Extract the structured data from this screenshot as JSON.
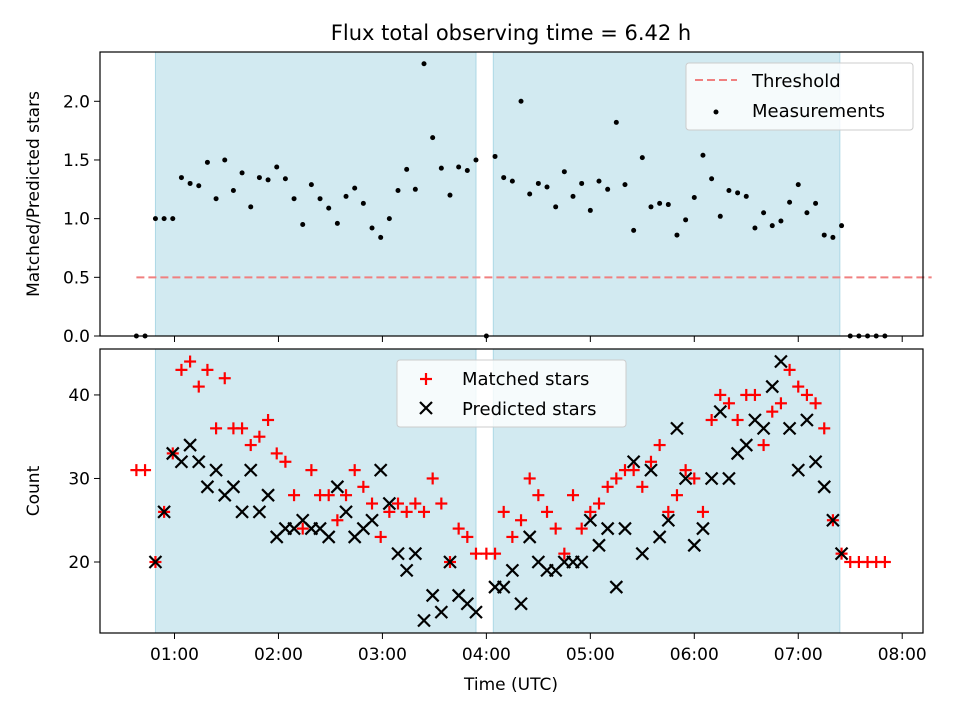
{
  "title": "Flux total observing time = 6.42 h",
  "colors": {
    "shade": "#add8e6",
    "threshold": "#f08080",
    "measurements": "#000000",
    "matched": "#ff0000",
    "predicted": "#000000"
  },
  "chart_data": [
    {
      "type": "scatter",
      "panel": "top",
      "title": "Flux total observing time = 6.42 h",
      "xlabel": "",
      "ylabel": "Matched/Predicted stars",
      "xlim": [
        "00:17",
        "08:12"
      ],
      "ylim": [
        0,
        2.42
      ],
      "yticks": [
        "0.0",
        "0.5",
        "1.0",
        "1.5",
        "2.0"
      ],
      "grid": false,
      "legend_position": "top-right",
      "shaded_intervals": [
        [
          "00:49",
          "03:54"
        ],
        [
          "04:04",
          "07:24"
        ]
      ],
      "threshold": {
        "name": "Threshold",
        "y": 0.5,
        "x_range": [
          "00:38",
          "08:17"
        ]
      },
      "series": [
        {
          "name": "Measurements",
          "marker": "dot",
          "x": [
            "00:38",
            "00:43",
            "00:49",
            "00:54",
            "00:59",
            "01:04",
            "01:09",
            "01:14",
            "01:19",
            "01:24",
            "01:29",
            "01:34",
            "01:39",
            "01:44",
            "01:49",
            "01:54",
            "01:59",
            "02:04",
            "02:09",
            "02:14",
            "02:19",
            "02:24",
            "02:29",
            "02:34",
            "02:39",
            "02:44",
            "02:49",
            "02:54",
            "02:59",
            "03:04",
            "03:09",
            "03:14",
            "03:19",
            "03:24",
            "03:29",
            "03:34",
            "03:39",
            "03:44",
            "03:49",
            "03:54",
            "04:00",
            "04:05",
            "04:10",
            "04:15",
            "04:20",
            "04:25",
            "04:30",
            "04:35",
            "04:40",
            "04:45",
            "04:50",
            "04:55",
            "05:00",
            "05:05",
            "05:10",
            "05:15",
            "05:20",
            "05:25",
            "05:30",
            "05:35",
            "05:40",
            "05:45",
            "05:50",
            "05:55",
            "06:00",
            "06:05",
            "06:10",
            "06:15",
            "06:20",
            "06:25",
            "06:30",
            "06:35",
            "06:40",
            "06:45",
            "06:50",
            "06:55",
            "07:00",
            "07:05",
            "07:10",
            "07:15",
            "07:20",
            "07:25",
            "07:30",
            "07:35",
            "07:40",
            "07:45",
            "07:50"
          ],
          "y": [
            0,
            0,
            1.0,
            1.0,
            1.0,
            1.35,
            1.3,
            1.28,
            1.48,
            1.17,
            1.5,
            1.24,
            1.39,
            1.1,
            1.35,
            1.33,
            1.44,
            1.34,
            1.17,
            0.95,
            1.29,
            1.17,
            1.09,
            0.96,
            1.19,
            1.26,
            1.13,
            0.92,
            0.84,
            1.0,
            1.24,
            1.42,
            1.25,
            2.32,
            1.69,
            1.43,
            1.2,
            1.44,
            1.41,
            1.5,
            0,
            1.53,
            1.35,
            1.32,
            2.0,
            1.21,
            1.3,
            1.27,
            1.1,
            1.4,
            1.19,
            1.3,
            1.07,
            1.32,
            1.25,
            1.82,
            1.29,
            0.9,
            1.52,
            1.1,
            1.13,
            1.12,
            0.86,
            0.99,
            1.18,
            1.54,
            1.34,
            1.02,
            1.24,
            1.22,
            1.19,
            0.92,
            1.05,
            0.94,
            0.98,
            1.14,
            1.29,
            1.05,
            1.13,
            0.86,
            0.84,
            0.94,
            0,
            0,
            0,
            0,
            0
          ]
        }
      ]
    },
    {
      "type": "scatter",
      "panel": "bottom",
      "xlabel": "Time (UTC)",
      "ylabel": "Count",
      "xlim": [
        "00:17",
        "08:12"
      ],
      "ylim": [
        11.5,
        45.5
      ],
      "yticks": [
        "20",
        "30",
        "40"
      ],
      "xticks": [
        "01:00",
        "02:00",
        "03:00",
        "04:00",
        "05:00",
        "06:00",
        "07:00",
        "08:00"
      ],
      "grid": false,
      "legend_position": "top-center",
      "shaded_intervals": [
        [
          "00:49",
          "03:54"
        ],
        [
          "04:04",
          "07:24"
        ]
      ],
      "series": [
        {
          "name": "Matched stars",
          "marker": "plus",
          "x": [
            "00:38",
            "00:43",
            "00:49",
            "00:54",
            "00:59",
            "01:04",
            "01:09",
            "01:14",
            "01:19",
            "01:24",
            "01:29",
            "01:34",
            "01:39",
            "01:44",
            "01:49",
            "01:54",
            "01:59",
            "02:04",
            "02:09",
            "02:14",
            "02:19",
            "02:24",
            "02:29",
            "02:34",
            "02:39",
            "02:44",
            "02:49",
            "02:54",
            "02:59",
            "03:04",
            "03:09",
            "03:14",
            "03:19",
            "03:24",
            "03:29",
            "03:34",
            "03:39",
            "03:44",
            "03:49",
            "03:54",
            "04:00",
            "04:05",
            "04:10",
            "04:15",
            "04:20",
            "04:25",
            "04:30",
            "04:35",
            "04:40",
            "04:45",
            "04:50",
            "04:55",
            "05:00",
            "05:05",
            "05:10",
            "05:15",
            "05:20",
            "05:25",
            "05:30",
            "05:35",
            "05:40",
            "05:45",
            "05:50",
            "05:55",
            "06:00",
            "06:05",
            "06:10",
            "06:15",
            "06:20",
            "06:25",
            "06:30",
            "06:35",
            "06:40",
            "06:45",
            "06:50",
            "06:55",
            "07:00",
            "07:05",
            "07:10",
            "07:15",
            "07:20",
            "07:25",
            "07:30",
            "07:35",
            "07:40",
            "07:45",
            "07:50"
          ],
          "y": [
            31,
            31,
            20,
            26,
            33,
            43,
            44,
            41,
            43,
            36,
            42,
            36,
            36,
            34,
            35,
            37,
            33,
            32,
            28,
            24,
            31,
            28,
            28,
            25,
            28,
            31,
            29,
            27,
            23,
            26,
            27,
            26,
            27,
            26,
            30,
            27,
            20,
            24,
            23,
            21,
            21,
            21,
            26,
            23,
            25,
            30,
            28,
            26,
            24,
            21,
            28,
            24,
            26,
            27,
            29,
            30,
            31,
            31,
            29,
            32,
            34,
            26,
            28,
            31,
            30,
            26,
            37,
            40,
            39,
            37,
            40,
            40,
            34,
            38,
            39,
            43,
            41,
            40,
            39,
            36,
            25,
            21,
            20,
            20,
            20,
            20,
            20
          ]
        },
        {
          "name": "Predicted stars",
          "marker": "x",
          "x": [
            "00:49",
            "00:54",
            "00:59",
            "01:04",
            "01:09",
            "01:14",
            "01:19",
            "01:24",
            "01:29",
            "01:34",
            "01:39",
            "01:44",
            "01:49",
            "01:54",
            "01:59",
            "02:04",
            "02:09",
            "02:14",
            "02:19",
            "02:24",
            "02:29",
            "02:34",
            "02:39",
            "02:44",
            "02:49",
            "02:54",
            "02:59",
            "03:04",
            "03:09",
            "03:14",
            "03:19",
            "03:24",
            "03:29",
            "03:34",
            "03:39",
            "03:44",
            "03:49",
            "03:54",
            "04:05",
            "04:10",
            "04:15",
            "04:20",
            "04:25",
            "04:30",
            "04:35",
            "04:40",
            "04:45",
            "04:50",
            "04:55",
            "05:00",
            "05:05",
            "05:10",
            "05:15",
            "05:20",
            "05:25",
            "05:30",
            "05:35",
            "05:40",
            "05:45",
            "05:50",
            "05:55",
            "06:00",
            "06:05",
            "06:10",
            "06:15",
            "06:20",
            "06:25",
            "06:30",
            "06:35",
            "06:40",
            "06:45",
            "06:50",
            "06:55",
            "07:00",
            "07:05",
            "07:10",
            "07:15",
            "07:20",
            "07:25"
          ],
          "y": [
            20,
            26,
            33,
            32,
            34,
            32,
            29,
            31,
            28,
            29,
            26,
            31,
            26,
            28,
            23,
            24,
            24,
            25,
            24,
            24,
            23,
            29,
            26,
            23,
            24,
            25,
            31,
            27,
            21,
            19,
            21,
            13,
            16,
            14,
            20,
            16,
            15,
            14,
            17,
            17,
            19,
            15,
            23,
            20,
            19,
            19,
            20,
            20,
            20,
            25,
            22,
            24,
            17,
            24,
            32,
            21,
            31,
            23,
            25,
            36,
            30,
            22,
            24,
            30,
            38,
            30,
            33,
            34,
            37,
            36,
            41,
            44,
            36,
            31,
            37,
            32,
            29,
            25,
            21
          ]
        }
      ]
    }
  ]
}
